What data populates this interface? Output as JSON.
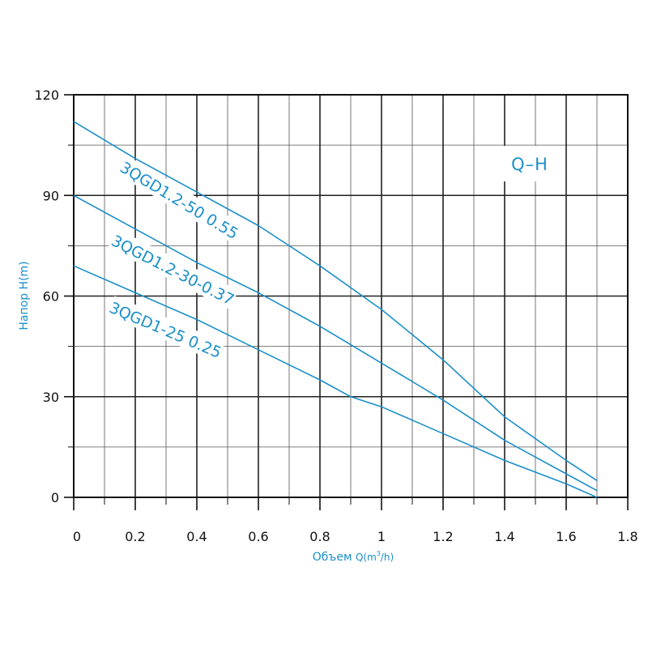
{
  "chart_data": {
    "type": "line",
    "title": "Q–H",
    "xlabel": "Объем Q(m³/h)",
    "xlabel_main": "Объем ",
    "xlabel_q": "Q(m",
    "xlabel_sup": "3",
    "xlabel_unit": "/h)",
    "ylabel": "Напор H(m)",
    "xlim": [
      0,
      1.8
    ],
    "ylim": [
      0,
      120
    ],
    "x_ticks": [
      "0",
      "0.2",
      "0.4",
      "0.6",
      "0.8",
      "1",
      "1.2",
      "1.4",
      "1.6",
      "1.8"
    ],
    "x_tick_values": [
      0,
      0.2,
      0.4,
      0.6,
      0.8,
      1.0,
      1.2,
      1.4,
      1.6,
      1.8
    ],
    "y_ticks": [
      "0",
      "30",
      "60",
      "90",
      "120"
    ],
    "y_tick_values": [
      0,
      30,
      60,
      90,
      120
    ],
    "grid": true,
    "line_color": "#1a8fc9",
    "series": [
      {
        "name": "3QGD1.2-50 0.55",
        "x": [
          0,
          0.2,
          0.4,
          0.6,
          0.8,
          1.0,
          1.2,
          1.4,
          1.6,
          1.7
        ],
        "y": [
          112,
          101,
          91,
          81,
          69,
          56,
          41,
          24,
          11,
          5
        ]
      },
      {
        "name": "3QGD1.2-30-0.37",
        "x": [
          0,
          0.2,
          0.4,
          0.6,
          0.8,
          1.0,
          1.2,
          1.4,
          1.6,
          1.7
        ],
        "y": [
          90,
          80,
          70,
          61,
          51,
          40,
          29,
          17,
          7,
          2
        ]
      },
      {
        "name": "3QGD1-25 0.25",
        "x": [
          0,
          0.2,
          0.4,
          0.6,
          0.8,
          0.9,
          1.0,
          1.2,
          1.4,
          1.6,
          1.7
        ],
        "y": [
          69,
          61,
          53,
          44,
          35,
          30,
          27,
          19,
          11,
          4,
          0
        ]
      }
    ]
  }
}
